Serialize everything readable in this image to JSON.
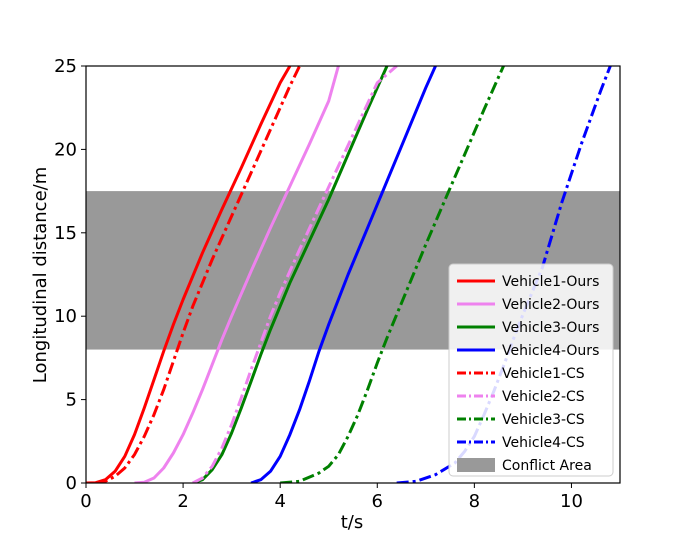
{
  "chart_data": {
    "type": "line",
    "xlabel": "t/s",
    "ylabel": "Longitudinal distance/m",
    "xlim": [
      0,
      11
    ],
    "ylim": [
      0,
      25
    ],
    "xticks": [
      0,
      2,
      4,
      6,
      8,
      10
    ],
    "yticks": [
      0,
      5,
      10,
      15,
      20,
      25
    ],
    "grid": false,
    "legend_position": "lower-right",
    "conflict_area": {
      "name": "Conflict Area",
      "y_range": [
        8,
        17.5
      ],
      "color": "#999999"
    },
    "series": [
      {
        "name": "Vehicle1-Ours",
        "color": "#ff0000",
        "style": "solid",
        "x": [
          0.0,
          0.2,
          0.4,
          0.6,
          0.8,
          1.0,
          1.2,
          1.4,
          1.6,
          1.8,
          2.0,
          2.4,
          2.8,
          3.2,
          3.6,
          4.0,
          4.2
        ],
        "y": [
          0.0,
          0.02,
          0.2,
          0.7,
          1.6,
          2.9,
          4.5,
          6.2,
          7.9,
          9.5,
          11.0,
          13.8,
          16.4,
          18.9,
          21.5,
          24.0,
          25.0
        ]
      },
      {
        "name": "Vehicle2-Ours",
        "color": "#ee82ee",
        "style": "solid",
        "x": [
          1.0,
          1.2,
          1.4,
          1.6,
          1.8,
          2.0,
          2.2,
          2.4,
          2.6,
          2.8,
          3.0,
          3.4,
          3.8,
          4.2,
          4.6,
          5.0,
          5.2
        ],
        "y": [
          0.0,
          0.05,
          0.3,
          0.9,
          1.8,
          2.9,
          4.2,
          5.6,
          7.1,
          8.6,
          10.0,
          12.7,
          15.3,
          17.8,
          20.3,
          22.9,
          25.0
        ]
      },
      {
        "name": "Vehicle3-Ours",
        "color": "#008000",
        "style": "solid",
        "x": [
          2.2,
          2.4,
          2.6,
          2.8,
          3.0,
          3.2,
          3.4,
          3.6,
          3.8,
          4.2,
          4.6,
          5.0,
          5.4,
          5.8,
          6.2
        ],
        "y": [
          0.0,
          0.2,
          0.8,
          1.7,
          3.0,
          4.5,
          6.1,
          7.7,
          9.2,
          12.0,
          14.5,
          17.0,
          19.7,
          22.4,
          25.0
        ]
      },
      {
        "name": "Vehicle4-Ours",
        "color": "#0000ff",
        "style": "solid",
        "x": [
          3.4,
          3.6,
          3.8,
          4.0,
          4.2,
          4.4,
          4.6,
          4.8,
          5.0,
          5.4,
          5.8,
          6.2,
          6.6,
          7.0,
          7.2
        ],
        "y": [
          0.0,
          0.2,
          0.7,
          1.6,
          2.9,
          4.4,
          6.1,
          7.9,
          9.5,
          12.5,
          15.3,
          18.1,
          20.9,
          23.7,
          25.0
        ]
      },
      {
        "name": "Vehicle1-CS",
        "color": "#ff0000",
        "style": "dashdot",
        "x": [
          0.2,
          0.4,
          0.6,
          0.8,
          1.0,
          1.2,
          1.4,
          1.6,
          1.8,
          2.0,
          2.2,
          2.6,
          3.0,
          3.4,
          3.8,
          4.2,
          4.4
        ],
        "y": [
          0.0,
          0.1,
          0.4,
          0.9,
          1.7,
          2.8,
          4.1,
          5.6,
          7.3,
          9.0,
          10.6,
          13.4,
          16.0,
          18.6,
          21.2,
          23.8,
          25.0
        ]
      },
      {
        "name": "Vehicle2-CS",
        "color": "#ee82ee",
        "style": "dashdot",
        "x": [
          2.2,
          2.4,
          2.6,
          2.8,
          3.0,
          3.2,
          3.4,
          3.6,
          3.8,
          4.0,
          4.4,
          4.8,
          5.2,
          5.6,
          6.0,
          6.4
        ],
        "y": [
          0.0,
          0.3,
          1.0,
          2.1,
          3.5,
          5.1,
          6.8,
          8.4,
          10.0,
          11.4,
          14.0,
          16.5,
          19.0,
          21.5,
          24.0,
          25.0
        ]
      },
      {
        "name": "Vehicle3-CS",
        "color": "#008000",
        "style": "dashdot",
        "x": [
          4.0,
          4.4,
          4.8,
          5.0,
          5.2,
          5.4,
          5.6,
          5.8,
          6.0,
          6.2,
          6.6,
          7.0,
          7.4,
          7.8,
          8.2,
          8.6
        ],
        "y": [
          0.0,
          0.1,
          0.6,
          1.0,
          1.7,
          2.8,
          4.1,
          5.6,
          7.2,
          8.7,
          11.5,
          14.3,
          17.0,
          19.7,
          22.4,
          25.0
        ]
      },
      {
        "name": "Vehicle4-CS",
        "color": "#0000ff",
        "style": "dashdot",
        "x": [
          6.4,
          6.8,
          7.2,
          7.6,
          7.8,
          8.0,
          8.2,
          8.4,
          8.6,
          8.8,
          9.0,
          9.4,
          9.8,
          10.2,
          10.6,
          10.8
        ],
        "y": [
          0.0,
          0.1,
          0.5,
          1.2,
          1.9,
          2.8,
          4.1,
          5.5,
          7.0,
          8.6,
          10.1,
          12.9,
          16.8,
          20.3,
          23.5,
          25.0
        ]
      }
    ]
  }
}
